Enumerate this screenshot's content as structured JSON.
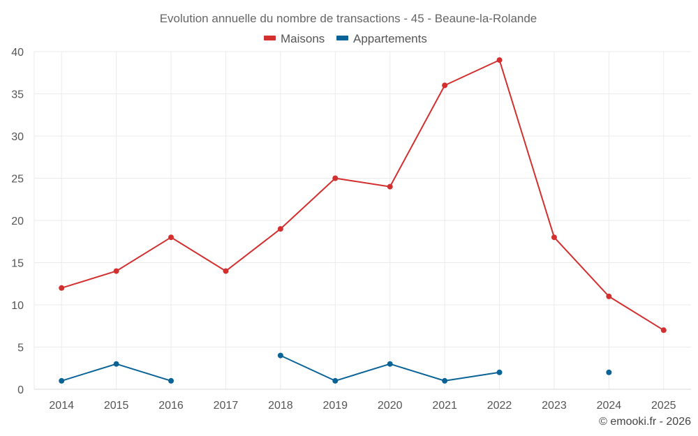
{
  "chart_data": {
    "type": "line",
    "title": "Evolution annuelle du nombre de transactions - 45 - Beaune-la-Rolande",
    "categories": [
      "2014",
      "2015",
      "2016",
      "2017",
      "2018",
      "2019",
      "2020",
      "2021",
      "2022",
      "2023",
      "2024",
      "2025"
    ],
    "series": [
      {
        "name": "Maisons",
        "color": "#d32f2f",
        "values": [
          12,
          14,
          18,
          14,
          19,
          25,
          24,
          36,
          39,
          18,
          11,
          7
        ]
      },
      {
        "name": "Appartements",
        "color": "#0a6396",
        "values": [
          1,
          3,
          1,
          null,
          4,
          1,
          3,
          1,
          2,
          null,
          2,
          null
        ]
      }
    ],
    "ylim": [
      0,
      40
    ],
    "yticks": [
      0,
      5,
      10,
      15,
      20,
      25,
      30,
      35,
      40
    ],
    "xlabel": "",
    "ylabel": "",
    "grid": true,
    "legend_position": "top-center"
  },
  "credit": "© emooki.fr - 2026"
}
